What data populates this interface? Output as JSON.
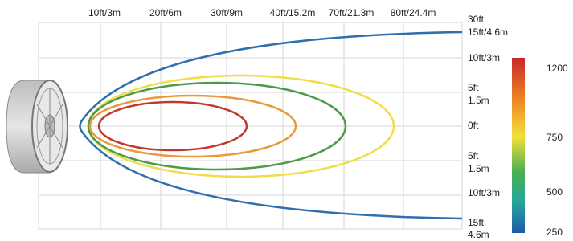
{
  "x_labels": [
    "10ft/3m",
    "20ft/6m",
    "30ft/9m",
    "40ft/15.2m",
    "70ft/21.3m",
    "80ft/24.4m"
  ],
  "y_labels": [
    [
      "30ft",
      "15ft/4.6m"
    ],
    [
      "10ft/3m"
    ],
    [
      "5ft",
      "1.5m"
    ],
    [
      "0ft"
    ],
    [
      "5ft",
      "1.5m"
    ],
    [
      "10ft/3m"
    ],
    [
      "15ft",
      "4.6m"
    ]
  ],
  "colorbar": {
    "labels": [
      1200,
      750,
      500,
      250
    ]
  }
}
